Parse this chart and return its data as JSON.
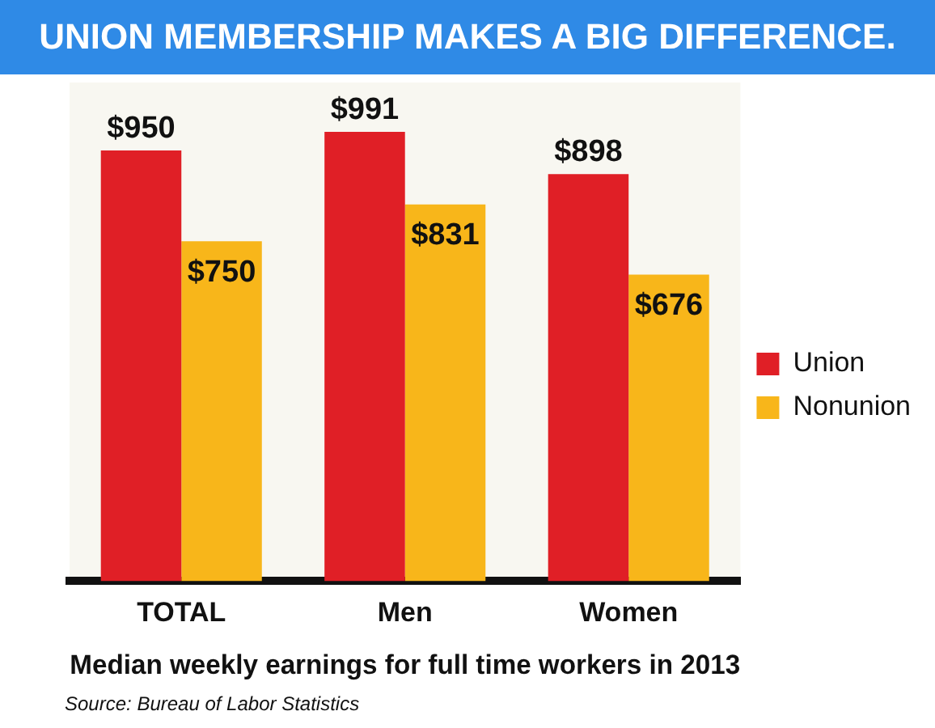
{
  "chart_data": {
    "type": "bar",
    "title": "UNION MEMBERSHIP MAKES A BIG DIFFERENCE.",
    "xlabel": "Median weekly earnings for full time workers in 2013",
    "categories": [
      "TOTAL",
      "Men",
      "Women"
    ],
    "series": [
      {
        "name": "Union",
        "color": "#e01f26",
        "values": [
          950,
          991,
          898
        ],
        "value_labels": [
          "$950",
          "$991",
          "$898"
        ]
      },
      {
        "name": "Nonunion",
        "color": "#f8b61a",
        "values": [
          750,
          831,
          676
        ],
        "value_labels": [
          "$750",
          "$831",
          "$676"
        ]
      }
    ],
    "ylim": [
      0,
      1100
    ],
    "tick_labels": "x",
    "legend": "right",
    "annotations": [
      "Source: Bureau of Labor Statistics"
    ]
  }
}
